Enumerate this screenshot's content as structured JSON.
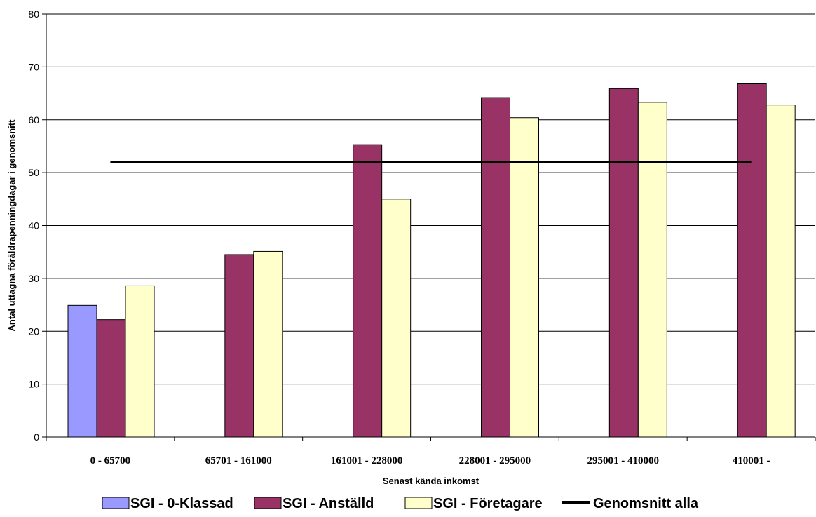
{
  "chart_data": {
    "type": "bar",
    "title": "",
    "xlabel": "Senast kända inkomst",
    "ylabel": "Antal uttagna föräldrapenningdagar i genomsnitt",
    "ylim": [
      0,
      80
    ],
    "yticks": [
      "0",
      "10",
      "20",
      "30",
      "40",
      "50",
      "60",
      "70",
      "80"
    ],
    "grid": true,
    "legend_position": "bottom",
    "categories": [
      "0 - 65700",
      "65701 - 161000",
      "161001 - 228000",
      "228001 - 295000",
      "295001 - 410000",
      "410001 -"
    ],
    "series": [
      {
        "name": "SGI - 0-Klassad",
        "color": "#9999ff",
        "values": [
          24.9,
          null,
          null,
          null,
          null,
          null
        ]
      },
      {
        "name": "SGI - Anställd",
        "color": "#993366",
        "values": [
          22.2,
          34.5,
          55.3,
          64.2,
          65.9,
          66.8
        ]
      },
      {
        "name": "SGI - Företagare",
        "color": "#ffffcc",
        "values": [
          28.6,
          35.1,
          45.0,
          60.4,
          63.3,
          62.8
        ]
      }
    ],
    "reference_line": {
      "name": "Genomsnitt alla",
      "value": 52,
      "color": "#000000"
    }
  }
}
